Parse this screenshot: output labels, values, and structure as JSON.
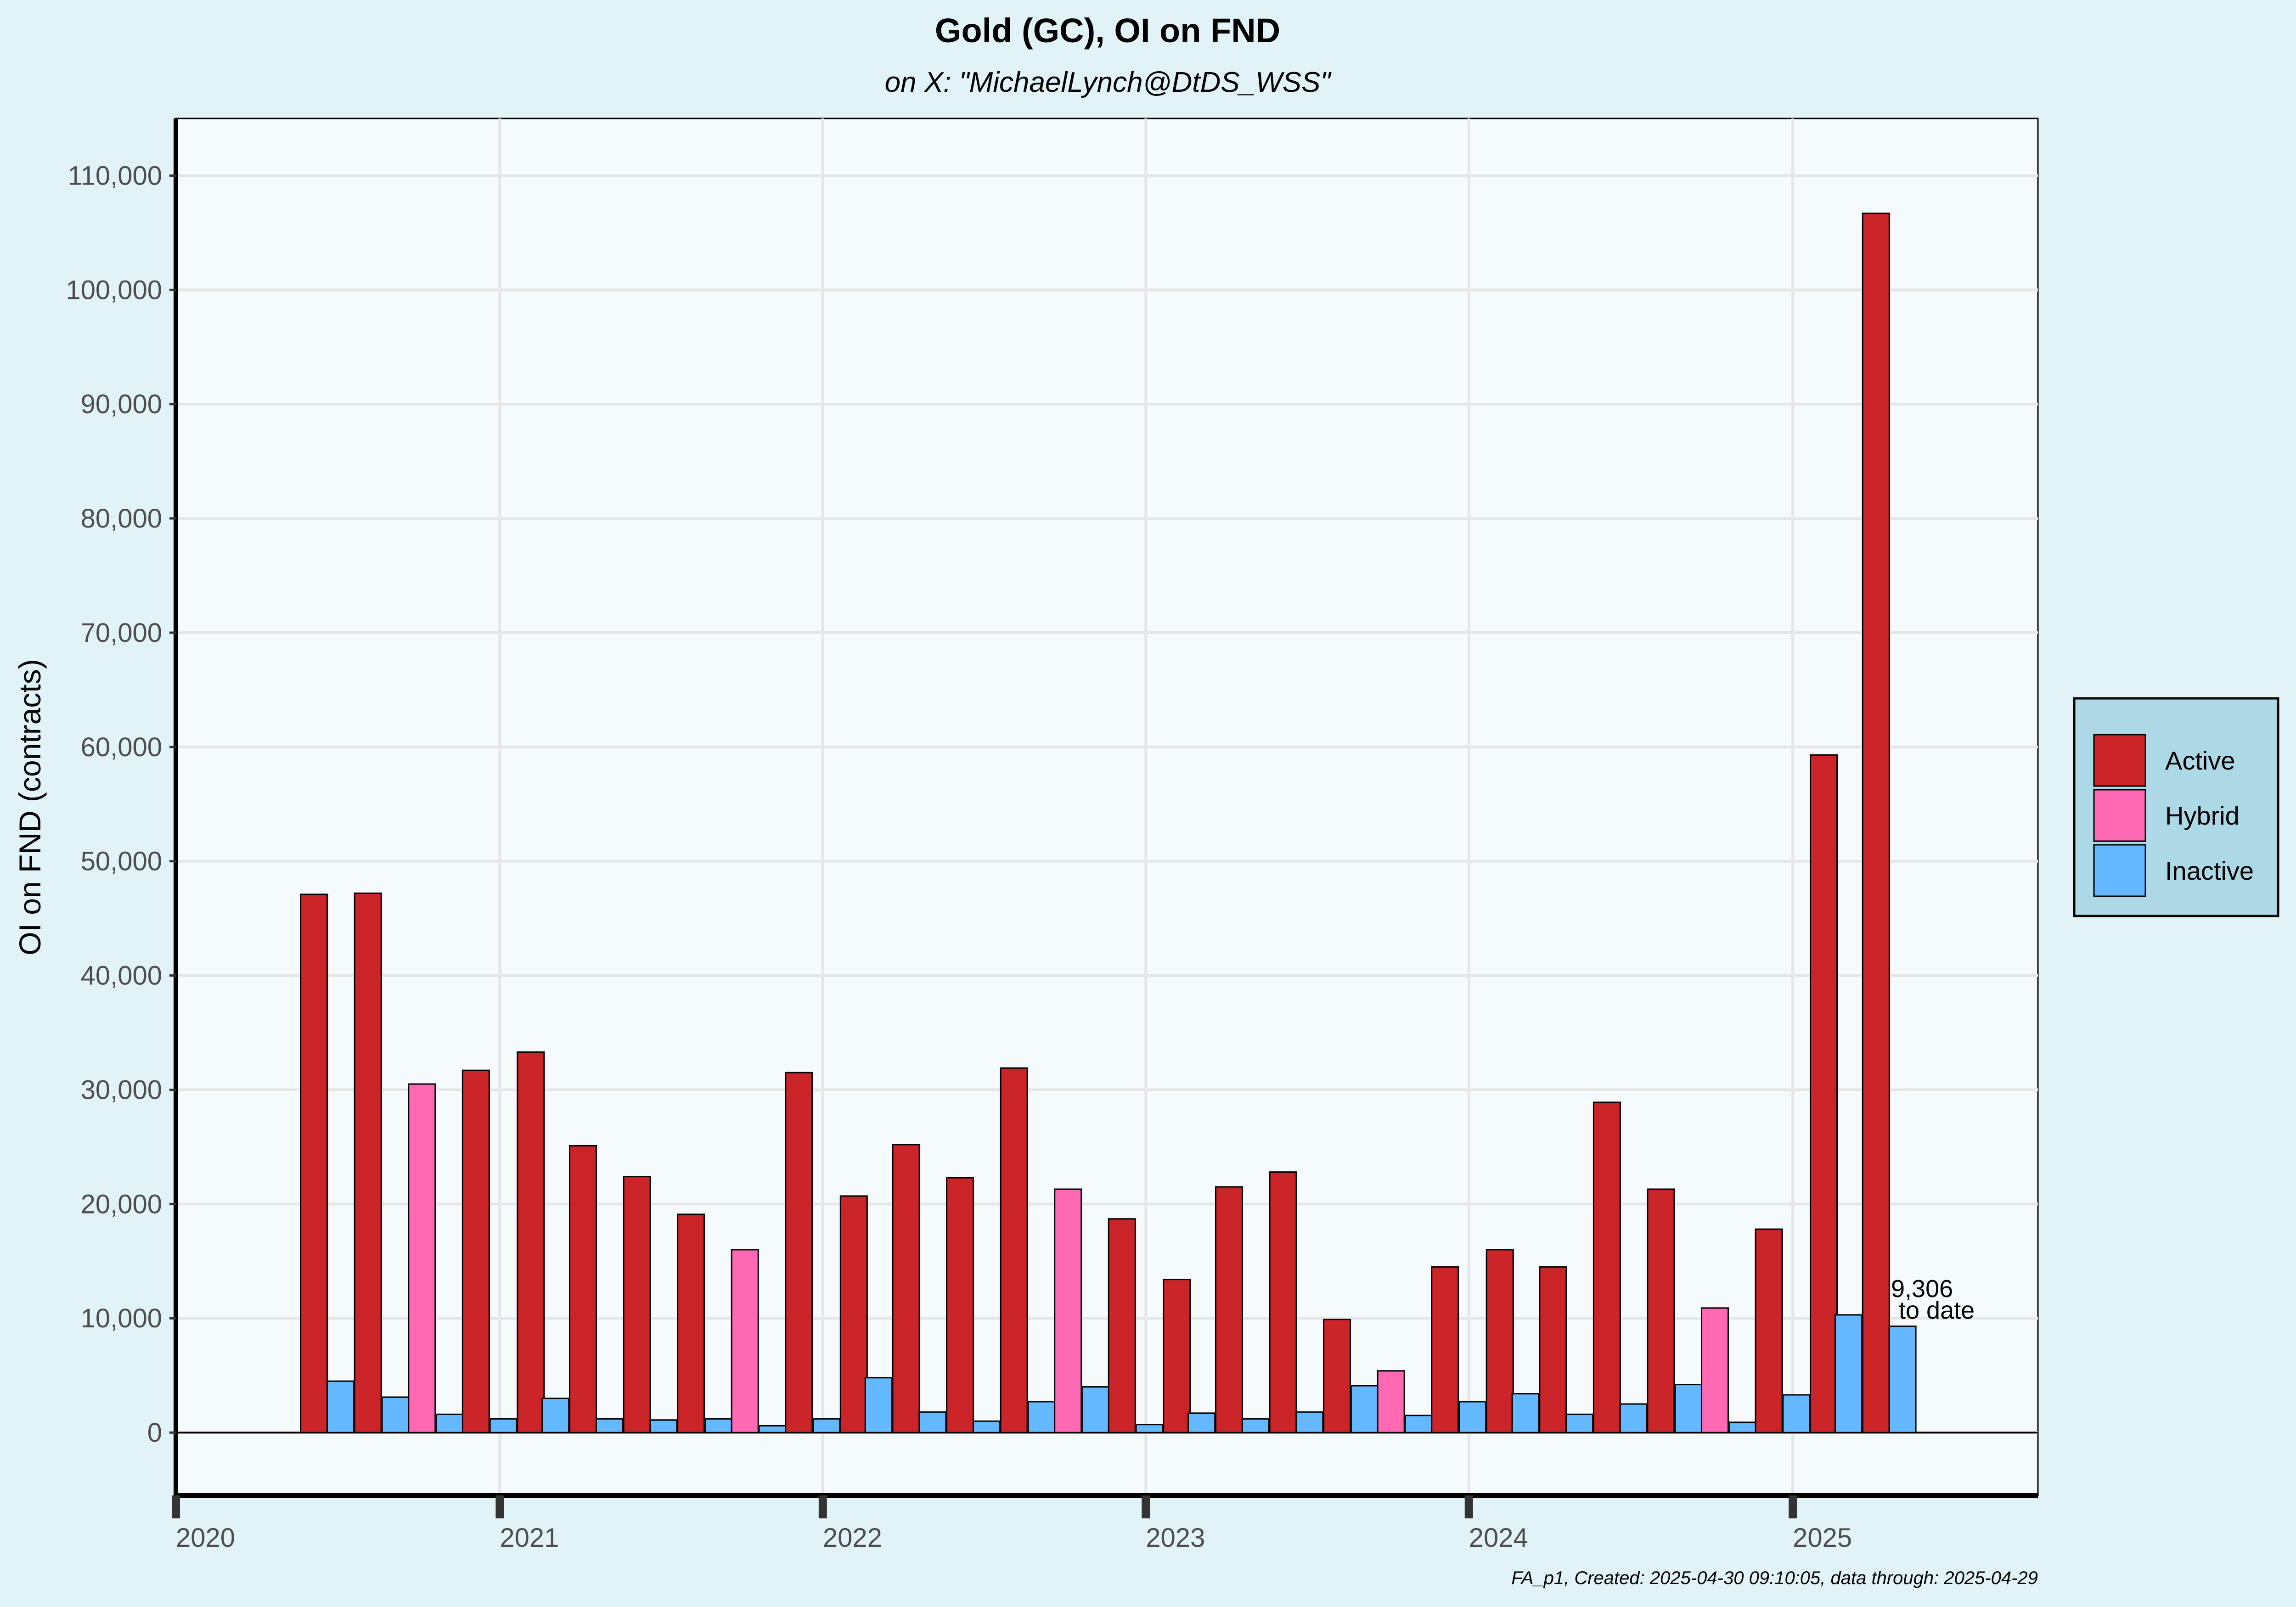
{
  "chart_data": {
    "type": "bar",
    "title": "Gold (GC), OI on FND",
    "subtitle": "on X:   \"MichaelLynch@DtDS_WSS\"",
    "ylabel": "OI on FND (contracts)",
    "xlabel": "",
    "ylim": [
      -5500,
      115000
    ],
    "xlim": [
      "2020-01-01",
      "2025-10-05"
    ],
    "y_ticks": [
      0,
      10000,
      20000,
      30000,
      40000,
      50000,
      60000,
      70000,
      80000,
      90000,
      100000,
      110000
    ],
    "y_tick_labels": [
      "0",
      "10,000",
      "20,000",
      "30,000",
      "40,000",
      "50,000",
      "60,000",
      "70,000",
      "80,000",
      "90,000",
      "100,000",
      "110,000"
    ],
    "x_ticks": [
      "2020-01-01",
      "2021-01-01",
      "2022-01-01",
      "2023-01-01",
      "2024-01-01",
      "2025-01-01"
    ],
    "x_tick_labels": [
      "2020",
      "2021",
      "2022",
      "2023",
      "2024",
      "2025"
    ],
    "grid": true,
    "legend_position": "right",
    "series": [
      {
        "name": "Active",
        "color": "#cc2529"
      },
      {
        "name": "Hybrid",
        "color": "#ff69b4"
      },
      {
        "name": "Inactive",
        "color": "#63b8ff"
      }
    ],
    "bars": [
      {
        "x": "2020-06-05",
        "series": "Active",
        "value": 47100
      },
      {
        "x": "2020-07-05",
        "series": "Inactive",
        "value": 4500
      },
      {
        "x": "2020-08-05",
        "series": "Active",
        "value": 47200
      },
      {
        "x": "2020-09-05",
        "series": "Inactive",
        "value": 3100
      },
      {
        "x": "2020-10-05",
        "series": "Hybrid",
        "value": 30500
      },
      {
        "x": "2020-11-05",
        "series": "Inactive",
        "value": 1600
      },
      {
        "x": "2020-12-05",
        "series": "Active",
        "value": 31700
      },
      {
        "x": "2021-01-05",
        "series": "Inactive",
        "value": 1200
      },
      {
        "x": "2021-02-05",
        "series": "Active",
        "value": 33300
      },
      {
        "x": "2021-03-05",
        "series": "Inactive",
        "value": 3000
      },
      {
        "x": "2021-04-05",
        "series": "Active",
        "value": 25100
      },
      {
        "x": "2021-05-05",
        "series": "Inactive",
        "value": 1200
      },
      {
        "x": "2021-06-05",
        "series": "Active",
        "value": 22400
      },
      {
        "x": "2021-07-05",
        "series": "Inactive",
        "value": 1100
      },
      {
        "x": "2021-08-05",
        "series": "Active",
        "value": 19100
      },
      {
        "x": "2021-09-05",
        "series": "Inactive",
        "value": 1200
      },
      {
        "x": "2021-10-05",
        "series": "Hybrid",
        "value": 16000
      },
      {
        "x": "2021-11-05",
        "series": "Inactive",
        "value": 600
      },
      {
        "x": "2021-12-05",
        "series": "Active",
        "value": 31500
      },
      {
        "x": "2022-01-05",
        "series": "Inactive",
        "value": 1200
      },
      {
        "x": "2022-02-05",
        "series": "Active",
        "value": 20700
      },
      {
        "x": "2022-03-05",
        "series": "Inactive",
        "value": 4800
      },
      {
        "x": "2022-04-05",
        "series": "Active",
        "value": 25200
      },
      {
        "x": "2022-05-05",
        "series": "Inactive",
        "value": 1800
      },
      {
        "x": "2022-06-05",
        "series": "Active",
        "value": 22300
      },
      {
        "x": "2022-07-05",
        "series": "Inactive",
        "value": 1000
      },
      {
        "x": "2022-08-05",
        "series": "Active",
        "value": 31900
      },
      {
        "x": "2022-09-05",
        "series": "Inactive",
        "value": 2700
      },
      {
        "x": "2022-10-05",
        "series": "Hybrid",
        "value": 21300
      },
      {
        "x": "2022-11-05",
        "series": "Inactive",
        "value": 4000
      },
      {
        "x": "2022-12-05",
        "series": "Active",
        "value": 18700
      },
      {
        "x": "2023-01-05",
        "series": "Inactive",
        "value": 700
      },
      {
        "x": "2023-02-05",
        "series": "Active",
        "value": 13400
      },
      {
        "x": "2023-03-05",
        "series": "Inactive",
        "value": 1700
      },
      {
        "x": "2023-04-05",
        "series": "Active",
        "value": 21500
      },
      {
        "x": "2023-05-05",
        "series": "Inactive",
        "value": 1200
      },
      {
        "x": "2023-06-05",
        "series": "Active",
        "value": 22800
      },
      {
        "x": "2023-07-05",
        "series": "Inactive",
        "value": 1800
      },
      {
        "x": "2023-08-05",
        "series": "Active",
        "value": 9900
      },
      {
        "x": "2023-09-05",
        "series": "Inactive",
        "value": 4100
      },
      {
        "x": "2023-10-05",
        "series": "Hybrid",
        "value": 5400
      },
      {
        "x": "2023-11-05",
        "series": "Inactive",
        "value": 1500
      },
      {
        "x": "2023-12-05",
        "series": "Active",
        "value": 14500
      },
      {
        "x": "2024-01-05",
        "series": "Inactive",
        "value": 2700
      },
      {
        "x": "2024-02-05",
        "series": "Active",
        "value": 16000
      },
      {
        "x": "2024-03-05",
        "series": "Inactive",
        "value": 3400
      },
      {
        "x": "2024-04-05",
        "series": "Active",
        "value": 14500
      },
      {
        "x": "2024-05-05",
        "series": "Inactive",
        "value": 1600
      },
      {
        "x": "2024-06-05",
        "series": "Active",
        "value": 28900
      },
      {
        "x": "2024-07-05",
        "series": "Inactive",
        "value": 2500
      },
      {
        "x": "2024-08-05",
        "series": "Active",
        "value": 21300
      },
      {
        "x": "2024-09-05",
        "series": "Inactive",
        "value": 4200
      },
      {
        "x": "2024-10-05",
        "series": "Hybrid",
        "value": 10900
      },
      {
        "x": "2024-11-05",
        "series": "Inactive",
        "value": 900
      },
      {
        "x": "2024-12-05",
        "series": "Active",
        "value": 17800
      },
      {
        "x": "2025-01-05",
        "series": "Inactive",
        "value": 3300
      },
      {
        "x": "2025-02-05",
        "series": "Active",
        "value": 59300
      },
      {
        "x": "2025-03-05",
        "series": "Inactive",
        "value": 10300
      },
      {
        "x": "2025-04-05",
        "series": "Active",
        "value": 106700
      },
      {
        "x": "2025-05-05",
        "series": "Inactive",
        "value": 9306
      }
    ],
    "annotation": {
      "line1": "9,306",
      "line2": "to date",
      "x": "2025-05-05",
      "value": 9306
    }
  },
  "footer": "FA_p1, Created: 2025-04-30 09:10:05, data through: 2025-04-29"
}
